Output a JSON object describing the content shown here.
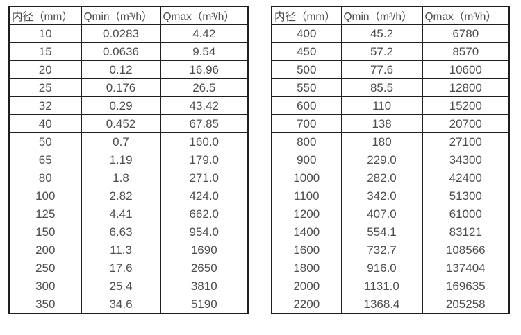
{
  "colors": {
    "background": "#ffffff",
    "text": "#4d4d4d",
    "border": "#1f1f1f"
  },
  "tables": [
    {
      "name": "small-diameter-flow-table",
      "headers": [
        "内径（mm）",
        "Qmin（m³/h）",
        "Qmax（m³/h）"
      ],
      "rows": [
        [
          "10",
          "0.0283",
          "4.42"
        ],
        [
          "15",
          "0.0636",
          "9.54"
        ],
        [
          "20",
          "0.12",
          "16.96"
        ],
        [
          "25",
          "0.176",
          "26.5"
        ],
        [
          "32",
          "0.29",
          "43.42"
        ],
        [
          "40",
          "0.452",
          "67.85"
        ],
        [
          "50",
          "0.7",
          "160.0"
        ],
        [
          "65",
          "1.19",
          "179.0"
        ],
        [
          "80",
          "1.8",
          "271.0"
        ],
        [
          "100",
          "2.82",
          "424.0"
        ],
        [
          "125",
          "4.41",
          "662.0"
        ],
        [
          "150",
          "6.63",
          "954.0"
        ],
        [
          "200",
          "11.3",
          "1690"
        ],
        [
          "250",
          "17.6",
          "2650"
        ],
        [
          "300",
          "25.4",
          "3810"
        ],
        [
          "350",
          "34.6",
          "5190"
        ]
      ]
    },
    {
      "name": "large-diameter-flow-table",
      "headers": [
        "内径（mm）",
        "Qmin（m³/h）",
        "Qmax（m³/h）"
      ],
      "rows": [
        [
          "400",
          "45.2",
          "6780"
        ],
        [
          "450",
          "57.2",
          "8570"
        ],
        [
          "500",
          "77.6",
          "10600"
        ],
        [
          "550",
          "85.5",
          "12800"
        ],
        [
          "600",
          "110",
          "15200"
        ],
        [
          "700",
          "138",
          "20700"
        ],
        [
          "800",
          "180",
          "27100"
        ],
        [
          "900",
          "229.0",
          "34300"
        ],
        [
          "1000",
          "282.0",
          "42400"
        ],
        [
          "1100",
          "342.0",
          "51300"
        ],
        [
          "1200",
          "407.0",
          "61000"
        ],
        [
          "1400",
          "554.1",
          "83121"
        ],
        [
          "1600",
          "732.7",
          "108566"
        ],
        [
          "1800",
          "916.0",
          "137404"
        ],
        [
          "2000",
          "1131.0",
          "169635"
        ],
        [
          "2200",
          "1368.4",
          "205258"
        ]
      ]
    }
  ]
}
